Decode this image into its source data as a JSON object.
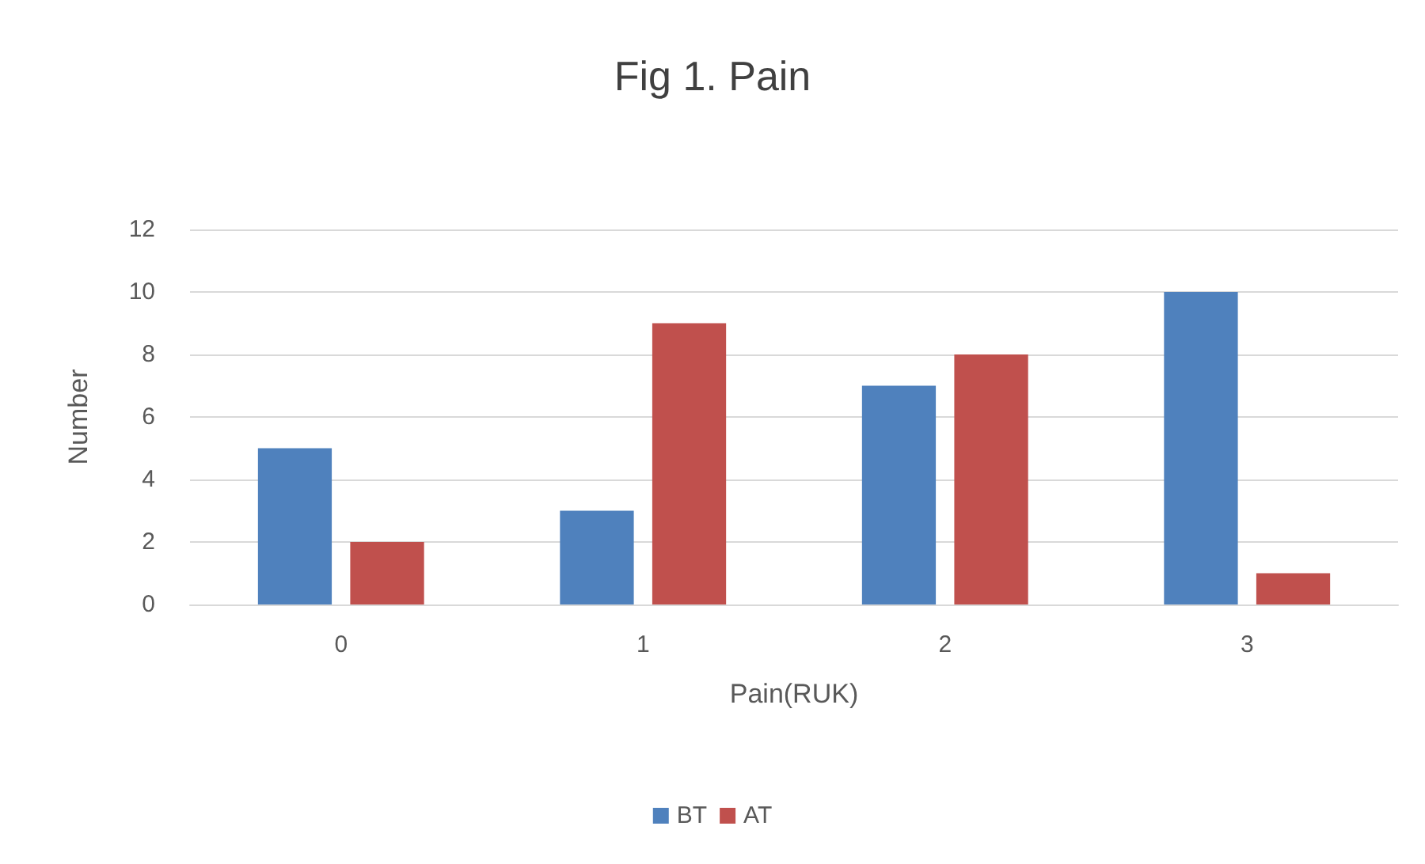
{
  "chart_data": {
    "type": "bar",
    "title": "Fig 1. Pain",
    "xlabel": "Pain(RUK)",
    "ylabel": "Number",
    "categories": [
      "0",
      "1",
      "2",
      "3"
    ],
    "series": [
      {
        "name": "BT",
        "color": "#4f81bd",
        "values": [
          5,
          3,
          7,
          10
        ]
      },
      {
        "name": "AT",
        "color": "#c0504d",
        "values": [
          2,
          9,
          8,
          1
        ]
      }
    ],
    "ylim": [
      0,
      12
    ],
    "yticks": [
      0,
      2,
      4,
      6,
      8,
      10,
      12
    ],
    "grid": "y",
    "legend": "bottom"
  }
}
